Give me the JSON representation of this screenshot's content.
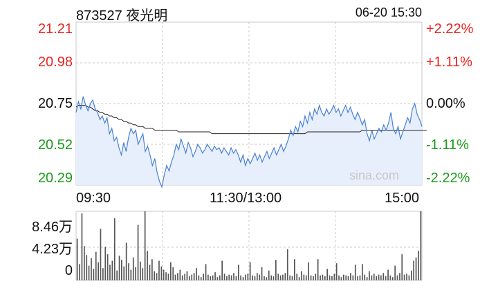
{
  "header": {
    "stock": "873527 夜光明",
    "datetime": "06-20 15:30"
  },
  "price_axis": {
    "left_labels": [
      "21.21",
      "20.98",
      "20.75",
      "20.52",
      "20.29"
    ],
    "right_labels": [
      "+2.22%",
      "+1.11%",
      "0.00%",
      "-1.11%",
      "-2.22%"
    ],
    "label_colors": {
      "up": "#e8231f",
      "flat": "#111111",
      "down": "#1a9a1a"
    }
  },
  "time_axis": {
    "labels": [
      "09:30",
      "11:30/13:00",
      "15:00"
    ]
  },
  "volume_axis": {
    "labels": [
      "8.46万",
      "4.23万",
      "0"
    ]
  },
  "watermark": "sina.com",
  "colors": {
    "price_line": "#4a7fd8",
    "avg_line": "#222222",
    "area_fill": "#e6effb",
    "grid": "#c8c8c8",
    "volume_bar": "#555555"
  },
  "chart_data": {
    "type": "line",
    "title": "873527 夜光明",
    "xlabel": "",
    "ylabel": "",
    "x_ticks": [
      "09:30",
      "11:30/13:00",
      "15:00"
    ],
    "ylim": [
      20.29,
      21.21
    ],
    "reference_price": 20.75,
    "grid": true,
    "series": [
      {
        "values": [
          20.7,
          20.76,
          20.72,
          20.79,
          20.74,
          20.71,
          20.75,
          20.77,
          20.72,
          20.7,
          20.66,
          20.68,
          20.64,
          20.67,
          20.58,
          20.61,
          20.54,
          20.56,
          20.5,
          20.46,
          20.53,
          20.48,
          20.56,
          20.61,
          20.58,
          20.6,
          20.52,
          20.55,
          20.58,
          20.48,
          20.51,
          20.46,
          20.4,
          20.44,
          20.36,
          20.31,
          20.28,
          20.35,
          20.4,
          20.37,
          20.42,
          20.46,
          20.52,
          20.49,
          20.55,
          20.51,
          20.47,
          20.53,
          20.5,
          20.45,
          20.48,
          20.52,
          20.5,
          20.47,
          20.49,
          20.52,
          20.5,
          20.48,
          20.51,
          20.49,
          20.5,
          20.47,
          20.5,
          20.48,
          20.46,
          20.5,
          20.47,
          20.49,
          20.46,
          20.42,
          20.46,
          20.4,
          20.44,
          20.41,
          20.44,
          20.47,
          20.43,
          20.46,
          20.42,
          20.45,
          20.48,
          20.44,
          20.47,
          20.5,
          20.46,
          20.49,
          20.52,
          20.48,
          20.51,
          20.55,
          20.6,
          20.57,
          20.62,
          20.59,
          20.65,
          20.62,
          20.68,
          20.64,
          20.7,
          20.66,
          20.72,
          20.69,
          20.74,
          20.7,
          20.68,
          20.72,
          20.69,
          20.71,
          20.74,
          20.7,
          20.72,
          20.68,
          20.71,
          20.74,
          20.7,
          20.73,
          20.69,
          20.66,
          20.7,
          20.67,
          20.63,
          20.66,
          20.58,
          20.54,
          20.6,
          20.55,
          20.58,
          20.61,
          20.59,
          20.63,
          20.6,
          20.64,
          20.7,
          20.61,
          20.58,
          20.62,
          20.55,
          20.59,
          20.63,
          20.67,
          20.64,
          20.72,
          20.75,
          20.69,
          20.66,
          20.62
        ],
        "unit": "price"
      },
      {
        "values": [
          20.73,
          20.74,
          20.74,
          20.74,
          20.74,
          20.73,
          20.73,
          20.72,
          20.71,
          20.71,
          20.7,
          20.7,
          20.69,
          20.69,
          20.68,
          20.68,
          20.67,
          20.67,
          20.66,
          20.66,
          20.65,
          20.65,
          20.64,
          20.64,
          20.63,
          20.63,
          20.62,
          20.62,
          20.62,
          20.61,
          20.61,
          20.61,
          20.61,
          20.6,
          20.6,
          20.6,
          20.6,
          20.6,
          20.6,
          20.6,
          20.6,
          20.6,
          20.6,
          20.59,
          20.59,
          20.59,
          20.59,
          20.59,
          20.59,
          20.59,
          20.59,
          20.59,
          20.59,
          20.59,
          20.59,
          20.59,
          20.59,
          20.58,
          20.58,
          20.58,
          20.58,
          20.58,
          20.58,
          20.58,
          20.58,
          20.58,
          20.58,
          20.58,
          20.58,
          20.58,
          20.58,
          20.58,
          20.58,
          20.58,
          20.58,
          20.58,
          20.58,
          20.58,
          20.58,
          20.58,
          20.58,
          20.58,
          20.58,
          20.58,
          20.58,
          20.58,
          20.58,
          20.58,
          20.58,
          20.58,
          20.58,
          20.58,
          20.58,
          20.58,
          20.58,
          20.58,
          20.58,
          20.59,
          20.59,
          20.59,
          20.59,
          20.59,
          20.59,
          20.59,
          20.59,
          20.59,
          20.59,
          20.59,
          20.59,
          20.59,
          20.59,
          20.59,
          20.59,
          20.59,
          20.59,
          20.59,
          20.59,
          20.59,
          20.59,
          20.59,
          20.6,
          20.6,
          20.6,
          20.6,
          20.6,
          20.6,
          20.6,
          20.6,
          20.6,
          20.6,
          20.6,
          20.6,
          20.6,
          20.6,
          20.6,
          20.6,
          20.6,
          20.6,
          20.6,
          20.6,
          20.6,
          20.6,
          20.6,
          20.6,
          20.6,
          20.6,
          20.6,
          20.6
        ],
        "unit": "price"
      }
    ],
    "volume": {
      "ylim": [
        0,
        8.46
      ],
      "unit": "万",
      "values": [
        5.1,
        2.0,
        8.2,
        4.2,
        3.1,
        1.8,
        2.7,
        1.4,
        3.5,
        2.2,
        6.3,
        1.5,
        4.1,
        3.2,
        1.9,
        2.4,
        7.6,
        1.2,
        3.0,
        2.5,
        1.7,
        4.6,
        2.1,
        1.3,
        2.8,
        1.6,
        6.8,
        2.3,
        1.5,
        8.46,
        3.6,
        1.9,
        2.6,
        1.1,
        0.9,
        2.4,
        1.7,
        1.3,
        1.0,
        0.8,
        2.2,
        1.6,
        0.7,
        0.9,
        1.3,
        0.6,
        0.8,
        1.1,
        0.5,
        0.7,
        0.9,
        1.5,
        0.6,
        0.4,
        0.8,
        2.0,
        0.7,
        0.5,
        0.6,
        1.0,
        0.4,
        0.6,
        2.4,
        0.8,
        0.5,
        0.7,
        0.6,
        0.9,
        0.5,
        1.9,
        0.6,
        0.4,
        0.7,
        0.8,
        2.2,
        0.6,
        0.5,
        0.9,
        0.7,
        1.6,
        0.5,
        0.4,
        1.2,
        0.6,
        0.5,
        2.5,
        0.8,
        0.6,
        0.7,
        0.9,
        3.8,
        0.6,
        0.5,
        2.6,
        0.8,
        0.4,
        1.1,
        0.7,
        0.6,
        2.2,
        0.6,
        0.5,
        0.8,
        2.6,
        0.6,
        0.7,
        0.5,
        1.4,
        0.6,
        0.5,
        0.8,
        2.1,
        0.6,
        0.4,
        0.7,
        0.6,
        0.5,
        0.9,
        0.6,
        1.9,
        0.5,
        0.6,
        2.0,
        0.7,
        0.4,
        1.1,
        0.6,
        0.8,
        0.5,
        0.7,
        0.6,
        0.9,
        0.5,
        1.3,
        0.6,
        0.4,
        1.8,
        0.6,
        0.9,
        3.2,
        0.7,
        0.8,
        0.6,
        1.2,
        2.4,
        2.8,
        3.6,
        8.46
      ]
    }
  }
}
